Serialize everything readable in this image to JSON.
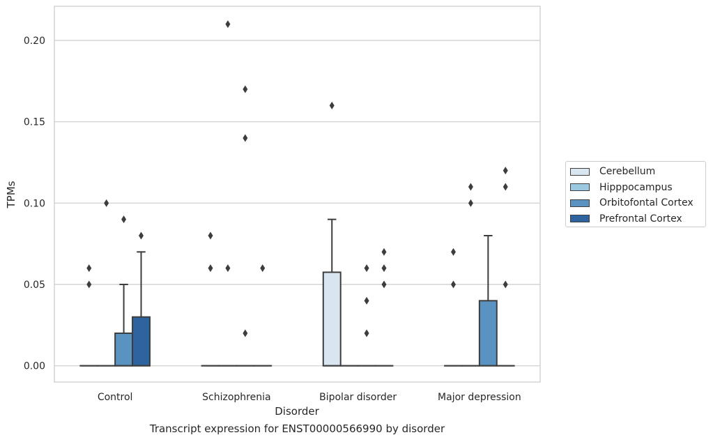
{
  "caption": "Transcript expression for ENST00000566990 by disorder",
  "chart_data": {
    "type": "box",
    "xlabel": "Disorder",
    "ylabel": "TPMs",
    "ylim": [
      -0.01,
      0.221
    ],
    "yticks": [
      "0.00",
      "0.05",
      "0.10",
      "0.15",
      "0.20"
    ],
    "grid": "horizontal",
    "legend_position": "right",
    "categories": [
      "Control",
      "Schizophrenia",
      "Bipolar disorder",
      "Major depression"
    ],
    "series": [
      {
        "name": "Cerebellum",
        "color": "#d9e6f2",
        "boxes": [
          {
            "q1": 0,
            "median": 0,
            "q3": 0,
            "whislo": 0,
            "whishi": 0,
            "fliers": [
              0.06,
              0.05
            ]
          },
          {
            "q1": 0,
            "median": 0,
            "q3": 0,
            "whislo": 0,
            "whishi": 0,
            "fliers": [
              0.08,
              0.06
            ]
          },
          {
            "q1": 0,
            "median": 0,
            "q3": 0.0575,
            "whislo": 0,
            "whishi": 0.09,
            "fliers": [
              0.16
            ]
          },
          {
            "q1": 0,
            "median": 0,
            "q3": 0,
            "whislo": 0,
            "whishi": 0,
            "fliers": [
              0.07,
              0.05
            ]
          }
        ]
      },
      {
        "name": "Hipppocampus",
        "color": "#9ac8e0",
        "boxes": [
          {
            "q1": 0,
            "median": 0,
            "q3": 0,
            "whislo": 0,
            "whishi": 0,
            "fliers": [
              0.1
            ]
          },
          {
            "q1": 0,
            "median": 0,
            "q3": 0,
            "whislo": 0,
            "whishi": 0,
            "fliers": [
              0.21,
              0.06
            ]
          },
          {
            "q1": 0,
            "median": 0,
            "q3": 0,
            "whislo": 0,
            "whishi": 0,
            "fliers": []
          },
          {
            "q1": 0,
            "median": 0,
            "q3": 0,
            "whislo": 0,
            "whishi": 0,
            "fliers": [
              0.11,
              0.1
            ]
          }
        ]
      },
      {
        "name": "Orbitofontal Cortex",
        "color": "#5a93c1",
        "boxes": [
          {
            "q1": 0,
            "median": 0,
            "q3": 0.02,
            "whislo": 0,
            "whishi": 0.05,
            "fliers": [
              0.09
            ]
          },
          {
            "q1": 0,
            "median": 0,
            "q3": 0,
            "whislo": 0,
            "whishi": 0,
            "fliers": [
              0.17,
              0.14,
              0.02
            ]
          },
          {
            "q1": 0,
            "median": 0,
            "q3": 0,
            "whislo": 0,
            "whishi": 0,
            "fliers": [
              0.06,
              0.04,
              0.02
            ]
          },
          {
            "q1": 0,
            "median": 0,
            "q3": 0.04,
            "whislo": 0,
            "whishi": 0.08,
            "fliers": []
          }
        ]
      },
      {
        "name": "Prefrontal Cortex",
        "color": "#2d64a0",
        "boxes": [
          {
            "q1": 0,
            "median": 0,
            "q3": 0.03,
            "whislo": 0,
            "whishi": 0.07,
            "fliers": [
              0.08
            ]
          },
          {
            "q1": 0,
            "median": 0,
            "q3": 0,
            "whislo": 0,
            "whishi": 0,
            "fliers": [
              0.06
            ]
          },
          {
            "q1": 0,
            "median": 0,
            "q3": 0,
            "whislo": 0,
            "whishi": 0,
            "fliers": [
              0.07,
              0.06,
              0.05
            ]
          },
          {
            "q1": 0,
            "median": 0,
            "q3": 0,
            "whislo": 0,
            "whishi": 0,
            "fliers": [
              0.12,
              0.11,
              0.05
            ]
          }
        ]
      }
    ]
  }
}
